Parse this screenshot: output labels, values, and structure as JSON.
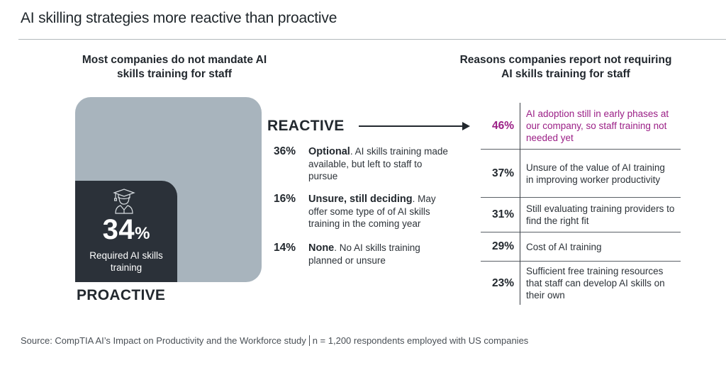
{
  "title": "AI skilling strategies more reactive than proactive",
  "colors": {
    "highlight": "#9b1f86",
    "reactive_square": "#a8b4bd",
    "proactive_square": "#2b3139"
  },
  "chart_data": [
    {
      "type": "area",
      "title": "Most companies do not mandate AI skills training for staff",
      "proactive": {
        "label": "PROACTIVE",
        "value": 34,
        "value_text": "34",
        "unit": "%",
        "description": "Required AI skills training",
        "icon": "graduate-icon"
      },
      "reactive": {
        "label": "REACTIVE",
        "items": [
          {
            "value": 36,
            "pct": "36%",
            "bold": "Optional",
            "text": ". AI skills training made available, but left to staff to pursue"
          },
          {
            "value": 16,
            "pct": "16%",
            "bold": "Unsure, still deciding",
            "text": ". May offer some type of of AI skills training in the coming year"
          },
          {
            "value": 14,
            "pct": "14%",
            "bold": "None",
            "text": ". No AI skills training planned or unsure"
          }
        ]
      }
    },
    {
      "type": "table",
      "title": "Reasons companies report not requiring AI skills training for staff",
      "rows": [
        {
          "value": 46,
          "pct": "46%",
          "text": "AI adoption still in early phases at our company, so staff training not needed yet",
          "highlight": true
        },
        {
          "value": 37,
          "pct": "37%",
          "text": "Unsure of the value of AI training in improving worker productivity",
          "highlight": false
        },
        {
          "value": 31,
          "pct": "31%",
          "text": "Still evaluating training providers to find the right fit",
          "highlight": false
        },
        {
          "value": 29,
          "pct": "29%",
          "text": "Cost of AI training",
          "highlight": false
        },
        {
          "value": 23,
          "pct": "23%",
          "text": "Sufficient free training resources that staff can develop AI skills on their own",
          "highlight": false
        }
      ]
    }
  ],
  "source": {
    "left": "Source: CompTIA AI’s Impact on Productivity and the Workforce study",
    "right": "n = 1,200 respondents employed with US companies"
  }
}
